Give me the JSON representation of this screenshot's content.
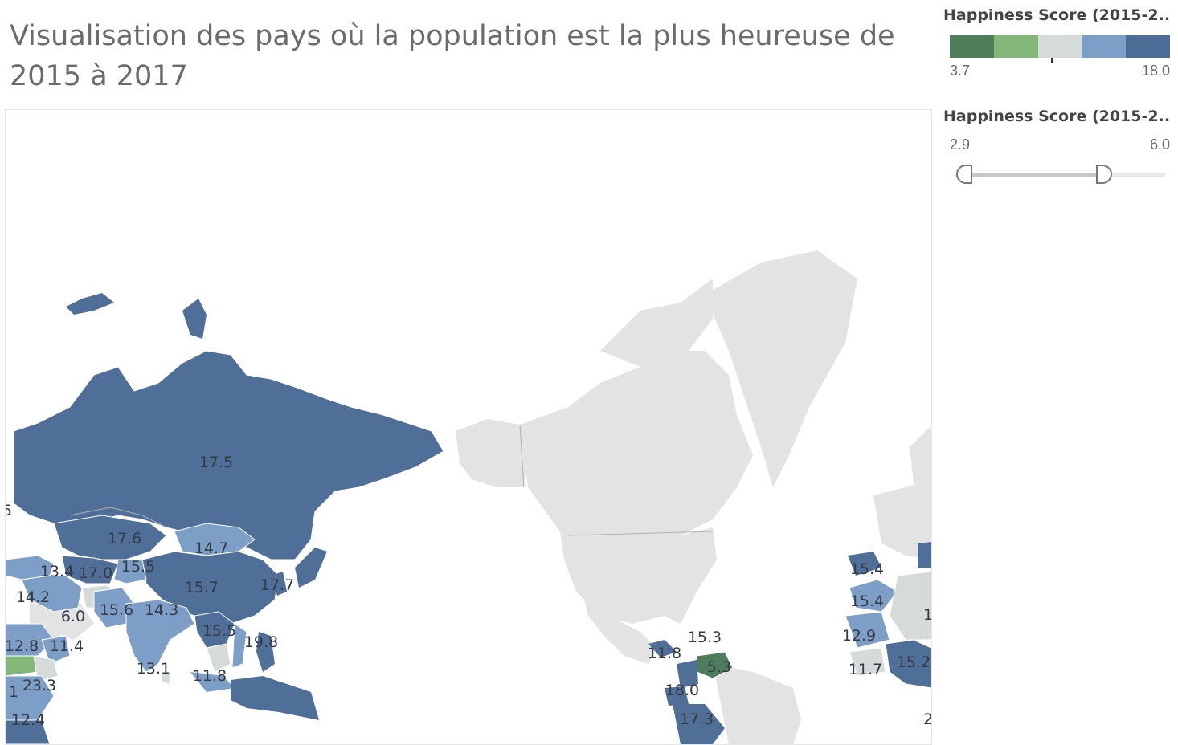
{
  "title": "Visualisation des pays où la population est la plus heureuse de 2015 à 2017",
  "color_legend": {
    "title": "Happiness Score (2015-2...",
    "min": "3.7",
    "max": "18.0",
    "colors": [
      "#4e7d5a",
      "#83b778",
      "#d4dbd9",
      "#7d9ec6",
      "#4d6d96"
    ]
  },
  "filter": {
    "title": "Happiness Score (2015-2...",
    "min_label": "2.9",
    "max_label": "6.0",
    "range_selected": [
      2.9,
      6.0
    ]
  },
  "map": {
    "colors": {
      "high": "#506f98",
      "mid_high": "#7d9ec6",
      "mid": "#d4dbd9",
      "low": "#83b778",
      "lowest": "#4e7d5a",
      "no_data": "#e3e3e3"
    },
    "labels": [
      {
        "id": "russia",
        "text": "17.5"
      },
      {
        "id": "edge-left",
        "text": "5"
      },
      {
        "id": "kazakhstan",
        "text": "17.6"
      },
      {
        "id": "mongolia",
        "text": "14.7"
      },
      {
        "id": "turkmenistan",
        "text": "13.4"
      },
      {
        "id": "uzbekistan",
        "text": "17.0"
      },
      {
        "id": "kyrgyzstan",
        "text": "15.5"
      },
      {
        "id": "china",
        "text": "15.7"
      },
      {
        "id": "korea",
        "text": "17.7"
      },
      {
        "id": "iran",
        "text": "14.2"
      },
      {
        "id": "afghanistan",
        "text": "6.0"
      },
      {
        "id": "pakistan",
        "text": "15.6"
      },
      {
        "id": "nepal",
        "text": "14.3"
      },
      {
        "id": "myanmar",
        "text": "15.5"
      },
      {
        "id": "philippines",
        "text": "19.8"
      },
      {
        "id": "yemen",
        "text": "12.8"
      },
      {
        "id": "somalia",
        "text": "11.4"
      },
      {
        "id": "sri-lanka",
        "text": "13.1"
      },
      {
        "id": "malaysia",
        "text": "11.8"
      },
      {
        "id": "south-sudan",
        "text": "1"
      },
      {
        "id": "kenya",
        "text": "23.3"
      },
      {
        "id": "tanzania",
        "text": "12.4"
      },
      {
        "id": "dominican",
        "text": "15.3"
      },
      {
        "id": "honduras",
        "text": "11.8"
      },
      {
        "id": "venezuela",
        "text": "5.3"
      },
      {
        "id": "ecuador",
        "text": "18.0"
      },
      {
        "id": "peru",
        "text": "17.3"
      },
      {
        "id": "portugal",
        "text": "15.4"
      },
      {
        "id": "morocco",
        "text": "15.4"
      },
      {
        "id": "mauritania",
        "text": "12.9"
      },
      {
        "id": "guinea",
        "text": "11.7"
      },
      {
        "id": "ghana",
        "text": "15.2"
      },
      {
        "id": "edge-right",
        "text": "1"
      },
      {
        "id": "edge-right2",
        "text": "2"
      }
    ]
  }
}
